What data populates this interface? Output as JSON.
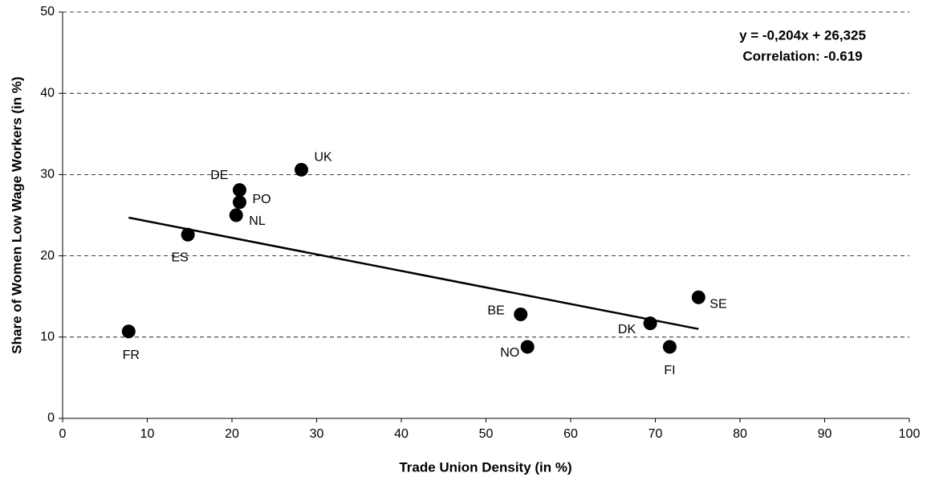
{
  "chart_data": {
    "type": "scatter",
    "xlabel": "Trade Union Density (in %)",
    "ylabel": "Share of Women Low Wage Workers (in %)",
    "annotations": [
      "y = -0,204x + 26,325",
      "Correlation: -0.619"
    ],
    "labels": [
      "FR",
      "ES",
      "NL",
      "PO",
      "DE",
      "UK",
      "BE",
      "NO",
      "DK",
      "FI",
      "SE"
    ],
    "x": [
      7.8,
      14.8,
      20.5,
      20.9,
      20.9,
      28.2,
      54.1,
      54.9,
      69.4,
      71.7,
      75.1
    ],
    "y": [
      10.7,
      22.6,
      25.0,
      26.6,
      28.1,
      30.6,
      12.8,
      8.8,
      11.7,
      8.8,
      14.9
    ],
    "color": "#000000",
    "trendline": {
      "x": [
        7.8,
        75.1
      ],
      "y": [
        24.7,
        11.0
      ]
    },
    "xlim": [
      0,
      100
    ],
    "xticks": [
      0,
      10,
      20,
      30,
      40,
      50,
      60,
      70,
      80,
      90,
      100
    ],
    "ylim": [
      0,
      50
    ],
    "yticks": [
      0,
      10,
      20,
      30,
      40,
      50
    ],
    "grid": true
  }
}
